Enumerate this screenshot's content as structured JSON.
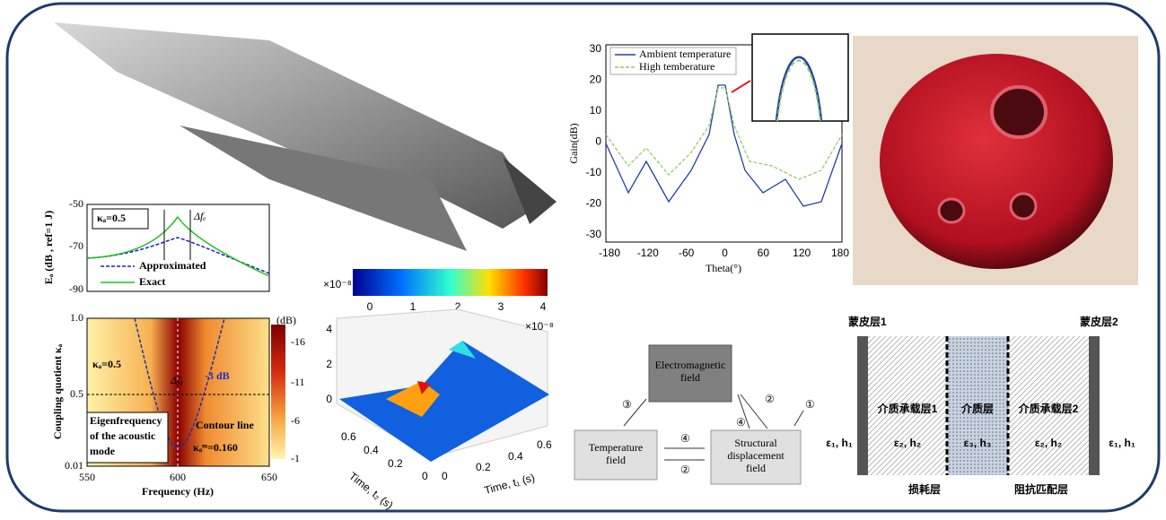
{
  "damping_plot": {
    "ylabel": "Eₐ (dB , ref=1 J)",
    "yticks": [
      "-50",
      "-70",
      "-90"
    ],
    "kappa_label": "κₐ=0.5",
    "delta_label": "Δfₑ",
    "legend": [
      "Approximated",
      "Exact"
    ]
  },
  "coupling_map": {
    "ylabel": "Coupling quotient κₐ",
    "xlabel": "Frequency (Hz)",
    "yticks": [
      "1.0",
      "0.5",
      "0.01"
    ],
    "xticks": [
      "550",
      "600",
      "650"
    ],
    "colorbar_title": "(dB)",
    "colorbar_ticks": [
      "-16",
      "-11",
      "-6",
      "-1"
    ],
    "kappa_label": "κₐ=0.5",
    "delta_label": "Δfₐ",
    "db_label": "-3 dB",
    "contour_label": "Contour line",
    "eigen_label": [
      "Eigenfrequency",
      "of the acoustic",
      "mode"
    ],
    "min_label": "κₐᵐ=0.160"
  },
  "surface_plot": {
    "colorbar_exponent": "×10⁻⁸",
    "colorbar_ticks": [
      "0",
      "1",
      "2",
      "3",
      "4"
    ],
    "z_exponent": "×10⁻⁸",
    "zticks": [
      "4",
      "2",
      "0"
    ],
    "t2_ticks": [
      "0.6",
      "0.4",
      "0.2",
      "0"
    ],
    "t1_ticks": [
      "0",
      "0.2",
      "0.4",
      "0.6"
    ],
    "t2_label": "Time, t₂ (s)",
    "t1_label": "Time, t₁ (s)"
  },
  "gain_plot": {
    "ylabel": "Gain(dB)",
    "xlabel": "Theta(°)",
    "yticks": [
      "30",
      "20",
      "10",
      "0",
      "-10",
      "-20",
      "-30"
    ],
    "xticks": [
      "-180",
      "-120",
      "-60",
      "0",
      "60",
      "120",
      "180"
    ],
    "legend": [
      "Ambient temperature",
      "High temberature"
    ]
  },
  "coupling_diagram": {
    "nodes": [
      [
        "Electromagnetic",
        "field"
      ],
      [
        "Temperature",
        "field"
      ],
      [
        "Structural",
        "displacement",
        "field"
      ]
    ],
    "markers": [
      "③",
      "②",
      "④",
      "①",
      "④",
      "②"
    ]
  },
  "layer_diagram": {
    "top_labels": [
      "蒙皮层1",
      "蒙皮层2"
    ],
    "layers": [
      "介质承载层1",
      "介质层",
      "介质承载层2"
    ],
    "params": [
      "ε₁, h₁",
      "ε₂, h₂",
      "ε₃, h₃",
      "ε₂, h₂",
      "ε₁, h₁"
    ],
    "bottom_labels": [
      "损耗层",
      "阻抗匹配层"
    ]
  }
}
